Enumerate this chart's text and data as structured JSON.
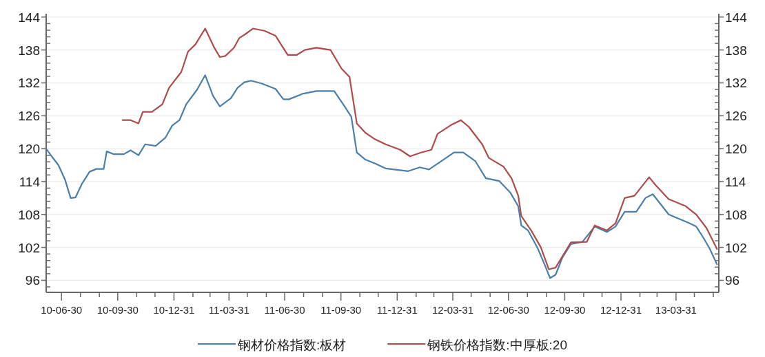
{
  "chart_data": {
    "type": "line",
    "xlim": [
      "2010-06-05",
      "2013-06-09"
    ],
    "ylim": [
      93.8,
      144.6
    ],
    "y2lim": [
      93.8,
      144.6
    ],
    "grid": "y",
    "legend": "bottom",
    "line_style": "solid",
    "marker": "none",
    "xticks": [
      {
        "value": "2010-06-30",
        "label": "10-06-30"
      },
      {
        "value": "2010-07-31",
        "label": null
      },
      {
        "value": "2010-08-31",
        "label": null
      },
      {
        "value": "2010-09-30",
        "label": "10-09-30"
      },
      {
        "value": "2010-10-31",
        "label": null
      },
      {
        "value": "2010-11-30",
        "label": null
      },
      {
        "value": "2010-12-31",
        "label": "10-12-31"
      },
      {
        "value": "2011-01-31",
        "label": null
      },
      {
        "value": "2011-02-28",
        "label": null
      },
      {
        "value": "2011-03-31",
        "label": "11-03-31"
      },
      {
        "value": "2011-04-30",
        "label": null
      },
      {
        "value": "2011-05-31",
        "label": null
      },
      {
        "value": "2011-06-30",
        "label": "11-06-30"
      },
      {
        "value": "2011-07-31",
        "label": null
      },
      {
        "value": "2011-08-31",
        "label": null
      },
      {
        "value": "2011-09-30",
        "label": "11-09-30"
      },
      {
        "value": "2011-10-31",
        "label": null
      },
      {
        "value": "2011-11-30",
        "label": null
      },
      {
        "value": "2011-12-31",
        "label": "11-12-31"
      },
      {
        "value": "2012-01-31",
        "label": null
      },
      {
        "value": "2012-02-29",
        "label": null
      },
      {
        "value": "2012-03-31",
        "label": "12-03-31"
      },
      {
        "value": "2012-04-30",
        "label": null
      },
      {
        "value": "2012-05-31",
        "label": null
      },
      {
        "value": "2012-06-30",
        "label": "12-06-30"
      },
      {
        "value": "2012-07-31",
        "label": null
      },
      {
        "value": "2012-08-31",
        "label": null
      },
      {
        "value": "2012-09-30",
        "label": "12-09-30"
      },
      {
        "value": "2012-10-31",
        "label": null
      },
      {
        "value": "2012-11-30",
        "label": null
      },
      {
        "value": "2012-12-31",
        "label": "12-12-31"
      },
      {
        "value": "2013-01-31",
        "label": null
      },
      {
        "value": "2013-02-28",
        "label": null
      },
      {
        "value": "2013-03-31",
        "label": "13-03-31"
      },
      {
        "value": "2013-04-30",
        "label": null
      },
      {
        "value": "2013-05-31",
        "label": null
      }
    ],
    "yticks": [
      {
        "value": 94.8,
        "label": null
      },
      96,
      {
        "value": 97.2,
        "label": null
      },
      {
        "value": 98.4,
        "label": null
      },
      {
        "value": 99.6,
        "label": null
      },
      {
        "value": 100.8,
        "label": null
      },
      102,
      {
        "value": 103.2,
        "label": null
      },
      {
        "value": 104.4,
        "label": null
      },
      {
        "value": 105.6,
        "label": null
      },
      {
        "value": 106.8,
        "label": null
      },
      108,
      {
        "value": 109.2,
        "label": null
      },
      {
        "value": 110.4,
        "label": null
      },
      {
        "value": 111.6,
        "label": null
      },
      {
        "value": 112.8,
        "label": null
      },
      114,
      {
        "value": 115.2,
        "label": null
      },
      {
        "value": 116.4,
        "label": null
      },
      {
        "value": 117.6,
        "label": null
      },
      {
        "value": 118.8,
        "label": null
      },
      120,
      {
        "value": 121.2,
        "label": null
      },
      {
        "value": 122.4,
        "label": null
      },
      {
        "value": 123.6,
        "label": null
      },
      {
        "value": 124.8,
        "label": null
      },
      126,
      {
        "value": 127.2,
        "label": null
      },
      {
        "value": 128.4,
        "label": null
      },
      {
        "value": 129.6,
        "label": null
      },
      {
        "value": 130.8,
        "label": null
      },
      132,
      {
        "value": 133.2,
        "label": null
      },
      {
        "value": 134.4,
        "label": null
      },
      {
        "value": 135.6,
        "label": null
      },
      {
        "value": 136.8,
        "label": null
      },
      138,
      {
        "value": 139.2,
        "label": null
      },
      {
        "value": 140.4,
        "label": null
      },
      {
        "value": 141.6,
        "label": null
      },
      {
        "value": 142.8,
        "label": null
      },
      144
    ],
    "y2ticks": [
      {
        "value": 94.8,
        "label": null
      },
      96,
      {
        "value": 97.2,
        "label": null
      },
      {
        "value": 98.4,
        "label": null
      },
      {
        "value": 99.6,
        "label": null
      },
      {
        "value": 100.8,
        "label": null
      },
      102,
      {
        "value": 103.2,
        "label": null
      },
      {
        "value": 104.4,
        "label": null
      },
      {
        "value": 105.6,
        "label": null
      },
      {
        "value": 106.8,
        "label": null
      },
      108,
      {
        "value": 109.2,
        "label": null
      },
      {
        "value": 110.4,
        "label": null
      },
      {
        "value": 111.6,
        "label": null
      },
      {
        "value": 112.8,
        "label": null
      },
      114,
      {
        "value": 115.2,
        "label": null
      },
      {
        "value": 116.4,
        "label": null
      },
      {
        "value": 117.6,
        "label": null
      },
      {
        "value": 118.8,
        "label": null
      },
      120,
      {
        "value": 121.2,
        "label": null
      },
      {
        "value": 122.4,
        "label": null
      },
      {
        "value": 123.6,
        "label": null
      },
      {
        "value": 124.8,
        "label": null
      },
      126,
      {
        "value": 127.2,
        "label": null
      },
      {
        "value": 128.4,
        "label": null
      },
      {
        "value": 129.6,
        "label": null
      },
      {
        "value": 130.8,
        "label": null
      },
      132,
      {
        "value": 133.2,
        "label": null
      },
      {
        "value": 134.4,
        "label": null
      },
      {
        "value": 135.6,
        "label": null
      },
      {
        "value": 136.8,
        "label": null
      },
      138,
      {
        "value": 139.2,
        "label": null
      },
      {
        "value": 140.4,
        "label": null
      },
      {
        "value": 141.6,
        "label": null
      },
      {
        "value": 142.8,
        "label": null
      },
      144
    ],
    "series": [
      {
        "name": "钢材价格指数:板材",
        "color": "#4a7eab",
        "x": [
          "2010-06-05",
          "2010-06-14",
          "2010-06-25",
          "2010-07-06",
          "2010-07-15",
          "2010-07-23",
          "2010-08-02",
          "2010-08-15",
          "2010-08-26",
          "2010-09-07",
          "2010-09-12",
          "2010-09-23",
          "2010-10-10",
          "2010-10-21",
          "2010-11-03",
          "2010-11-14",
          "2010-12-01",
          "2010-12-17",
          "2010-12-28",
          "2011-01-09",
          "2011-01-20",
          "2011-02-07",
          "2011-02-20",
          "2011-03-05",
          "2011-03-16",
          "2011-04-03",
          "2011-04-14",
          "2011-04-25",
          "2011-05-06",
          "2011-05-23",
          "2011-06-15",
          "2011-06-28",
          "2011-07-07",
          "2011-07-29",
          "2011-08-21",
          "2011-09-19",
          "2011-10-06",
          "2011-10-17",
          "2011-10-26",
          "2011-11-09",
          "2011-11-25",
          "2011-12-12",
          "2012-01-18",
          "2012-02-06",
          "2012-02-21",
          "2012-03-12",
          "2012-04-02",
          "2012-04-17",
          "2012-05-07",
          "2012-05-24",
          "2012-06-15",
          "2012-07-03",
          "2012-07-16",
          "2012-07-21",
          "2012-08-01",
          "2012-08-17",
          "2012-08-28",
          "2012-09-06",
          "2012-09-15",
          "2012-09-26",
          "2012-10-10",
          "2012-10-29",
          "2012-11-18",
          "2012-12-08",
          "2012-12-22",
          "2013-01-06",
          "2013-01-25",
          "2013-02-09",
          "2013-02-21",
          "2013-03-19",
          "2013-04-22",
          "2013-05-03",
          "2013-05-14",
          "2013-05-25",
          "2013-06-06"
        ],
        "values": [
          120,
          118.6,
          117,
          114.3,
          111,
          111.1,
          113.5,
          115.8,
          116.3,
          116.3,
          119.5,
          119,
          119,
          119.7,
          118.8,
          120.8,
          120.5,
          122,
          124.2,
          125.2,
          128.1,
          130.8,
          133.4,
          129.6,
          127.7,
          129.2,
          131.1,
          132.1,
          132.4,
          131.9,
          130.9,
          129,
          129,
          130,
          130.5,
          130.5,
          127.7,
          125.8,
          119.3,
          118,
          117.3,
          116.4,
          115.9,
          116.6,
          116.2,
          117.7,
          119.3,
          119.3,
          117.7,
          114.6,
          114.1,
          112,
          109.5,
          106,
          105.1,
          101.8,
          98.9,
          96.4,
          97,
          100.1,
          102.6,
          103,
          105.8,
          104.8,
          105.8,
          108.5,
          108.5,
          111,
          111.7,
          108,
          106.4,
          105.8,
          103.9,
          101.8,
          98.9
        ]
      },
      {
        "name": "钢铁价格指数:中厚板:20",
        "color": "#b04a4a",
        "x": [
          "2010-10-08",
          "2010-10-21",
          "2010-11-03",
          "2010-11-10",
          "2010-11-25",
          "2010-12-12",
          "2010-12-23",
          "2011-01-12",
          "2011-01-23",
          "2011-02-04",
          "2011-02-20",
          "2011-03-07",
          "2011-03-16",
          "2011-03-25",
          "2011-04-08",
          "2011-04-17",
          "2011-04-27",
          "2011-05-09",
          "2011-05-28",
          "2011-06-15",
          "2011-07-05",
          "2011-07-20",
          "2011-08-02",
          "2011-08-21",
          "2011-09-13",
          "2011-10-01",
          "2011-10-14",
          "2011-10-26",
          "2011-11-09",
          "2011-11-25",
          "2011-12-12",
          "2012-01-05",
          "2012-01-21",
          "2012-02-08",
          "2012-02-25",
          "2012-03-06",
          "2012-03-28",
          "2012-04-13",
          "2012-04-26",
          "2012-05-18",
          "2012-05-29",
          "2012-06-22",
          "2012-07-05",
          "2012-07-16",
          "2012-07-21",
          "2012-08-06",
          "2012-08-22",
          "2012-09-04",
          "2012-09-15",
          "2012-10-02",
          "2012-10-10",
          "2012-11-05",
          "2012-11-18",
          "2012-12-08",
          "2012-12-22",
          "2013-01-06",
          "2013-01-22",
          "2013-02-15",
          "2013-02-26",
          "2013-03-19",
          "2013-04-16",
          "2013-05-03",
          "2013-05-20",
          "2013-06-06"
        ],
        "values": [
          125.2,
          125.2,
          124.6,
          126.7,
          126.7,
          128.1,
          131.1,
          134,
          137.7,
          139,
          141.9,
          138.4,
          136.7,
          136.9,
          138.4,
          140.2,
          140.9,
          141.9,
          141.5,
          140.6,
          137.1,
          137.1,
          138,
          138.4,
          138,
          134.6,
          133.1,
          124.6,
          122.9,
          121.7,
          120.8,
          119.8,
          118.6,
          119.3,
          119.8,
          122.7,
          124.3,
          125.2,
          124,
          120.8,
          118.3,
          116.7,
          114.6,
          111.4,
          107.7,
          105.1,
          102,
          98,
          98.3,
          101.4,
          102.9,
          103,
          106,
          105.1,
          106.4,
          111,
          111.4,
          114.8,
          113.3,
          110.8,
          109.5,
          108,
          105.5,
          101.7
        ]
      }
    ]
  }
}
